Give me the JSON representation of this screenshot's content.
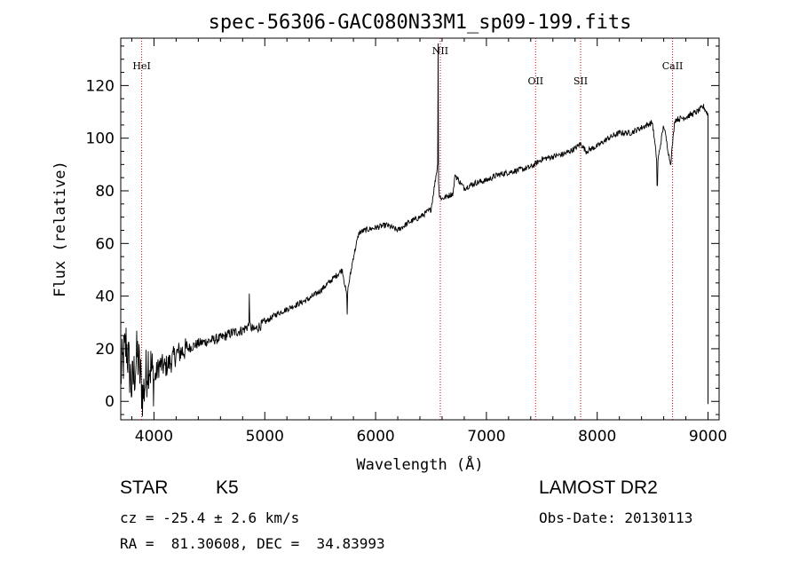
{
  "chart_data": {
    "type": "line",
    "title": "spec-56306-GAC080N33M1_sp09-199.fits",
    "xlabel": "Wavelength (Å)",
    "ylabel": "Flux (relative)",
    "xlim": [
      3700,
      9100
    ],
    "ylim": [
      -7,
      138
    ],
    "xticks": [
      4000,
      5000,
      6000,
      7000,
      8000,
      9000
    ],
    "yticks": [
      0,
      20,
      40,
      60,
      80,
      100,
      120
    ],
    "grid": false,
    "series": [
      {
        "x": [
          3700,
          3750,
          3800,
          3850,
          3900,
          3950,
          4000,
          4050,
          4100,
          4150,
          4200,
          4300,
          4400,
          4500,
          4600,
          4700,
          4800,
          4860,
          4900,
          5000,
          5100,
          5200,
          5300,
          5400,
          5500,
          5600,
          5700,
          5740,
          5800,
          5850,
          5900,
          6000,
          6100,
          6200,
          6300,
          6400,
          6500,
          6560,
          6575,
          6600,
          6700,
          6717,
          6800,
          6900,
          7000,
          7100,
          7200,
          7300,
          7400,
          7500,
          7600,
          7700,
          7800,
          7850,
          7900,
          8000,
          8100,
          8200,
          8300,
          8400,
          8498,
          8542,
          8600,
          8662,
          8700,
          8800,
          8900,
          8960,
          9000
        ],
        "y": [
          10,
          22,
          5,
          18,
          2,
          16,
          8,
          14,
          13,
          15,
          18,
          20,
          22,
          23,
          24,
          26,
          27,
          29,
          27,
          30,
          33,
          35,
          37,
          39,
          42,
          46,
          50,
          40,
          55,
          64,
          65,
          66,
          67,
          65,
          68,
          70,
          73,
          90,
          78,
          77,
          79,
          86,
          81,
          83,
          84,
          86,
          87,
          88,
          89,
          92,
          93,
          94,
          96,
          98,
          95,
          97,
          100,
          102,
          102,
          104,
          106,
          90,
          105,
          90,
          107,
          108,
          110,
          112,
          109
        ]
      }
    ],
    "lines": [
      {
        "label": "HeI",
        "x": 3889
      },
      {
        "label": "NII",
        "x": 6584
      },
      {
        "label": "OII",
        "x": 7444
      },
      {
        "label": "SII",
        "x": 7850
      },
      {
        "label": "CaII",
        "x": 8680
      }
    ]
  },
  "info": {
    "class_label": "STAR",
    "subclass_label": "K5",
    "velocity": "cz = -25.4 ± 2.6 km/s",
    "coords": "RA =  81.30608, DEC =  34.83993",
    "survey": "LAMOST DR2",
    "obs_date": "Obs-Date: 20130113"
  }
}
